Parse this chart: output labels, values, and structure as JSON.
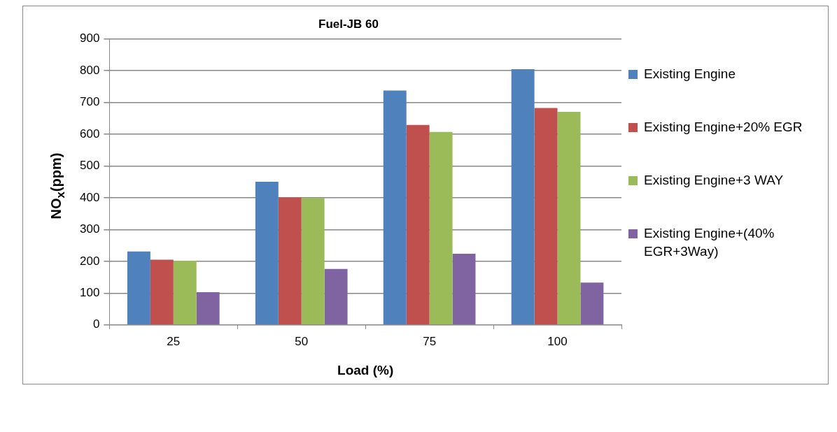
{
  "chart_data": {
    "type": "bar",
    "title": "Fuel-JB 60",
    "xlabel": "Load (%)",
    "ylabel": "NO$_{x}$(ppm)",
    "categories": [
      "25",
      "50",
      "75",
      "100"
    ],
    "series": [
      {
        "name": "Existing Engine",
        "color": "#4f81bd",
        "values": [
          231,
          450,
          737,
          804
        ]
      },
      {
        "name": "Existing Engine+20% EGR",
        "color": "#c0504d",
        "values": [
          205,
          401,
          629,
          682
        ]
      },
      {
        "name": "Existing Engine+3 WAY",
        "color": "#9bbb59",
        "values": [
          202,
          399,
          607,
          670
        ]
      },
      {
        "name": "Existing Engine+(40% EGR+3Way)",
        "color": "#8064a2",
        "values": [
          103,
          176,
          224,
          133
        ]
      }
    ],
    "ylim": [
      0,
      900
    ],
    "yticks": [
      0,
      100,
      200,
      300,
      400,
      500,
      600,
      700,
      800,
      900
    ],
    "grid": "y",
    "legend": "right"
  }
}
